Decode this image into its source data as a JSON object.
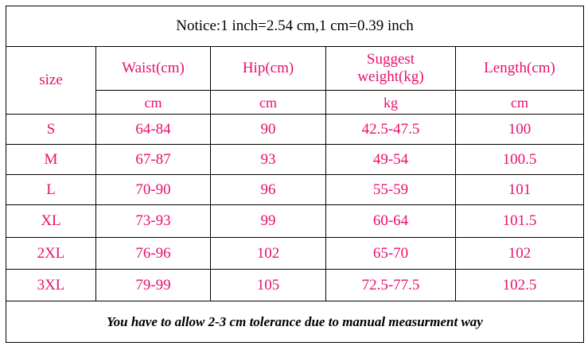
{
  "notice": "Notice:1 inch=2.54 cm,1 cm=0.39 inch",
  "header": {
    "size": "size",
    "waist": "Waist(cm)",
    "hip": "Hip(cm)",
    "weight_line1": "Suggest",
    "weight_line2": "weight(kg)",
    "length": "Length(cm)"
  },
  "units": {
    "waist": "cm",
    "hip": "cm",
    "weight": "kg",
    "length": "cm"
  },
  "rows": [
    {
      "size": "S",
      "waist": "64-84",
      "hip": "90",
      "weight": "42.5-47.5",
      "length": "100"
    },
    {
      "size": "M",
      "waist": "67-87",
      "hip": "93",
      "weight": "49-54",
      "length": "100.5"
    },
    {
      "size": "L",
      "waist": "70-90",
      "hip": "96",
      "weight": "55-59",
      "length": "101"
    },
    {
      "size": "XL",
      "waist": "73-93",
      "hip": "99",
      "weight": "60-64",
      "length": "101.5"
    },
    {
      "size": "2XL",
      "waist": "76-96",
      "hip": "102",
      "weight": "65-70",
      "length": "102"
    },
    {
      "size": "3XL",
      "waist": "79-99",
      "hip": "105",
      "weight": "72.5-77.5",
      "length": "102.5"
    }
  ],
  "footer": "You have to allow 2-3 cm tolerance due to manual measurment way",
  "colors": {
    "value_text": "#e8106e",
    "border": "#000000"
  }
}
